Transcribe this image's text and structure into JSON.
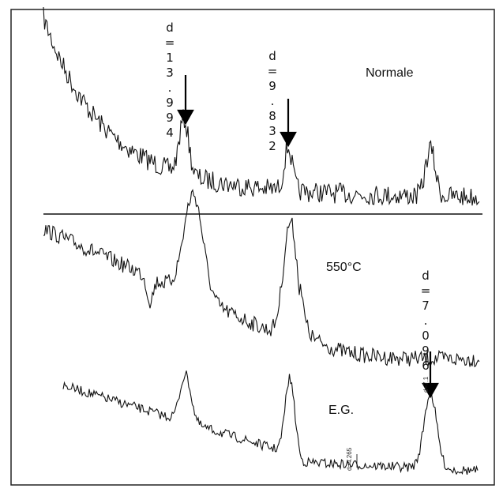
{
  "figure": {
    "normal": {
      "name": "Normale",
      "peak_labels": [
        "d=13.994",
        "d=9.832"
      ]
    },
    "heated": {
      "name": "550°C",
      "peak_labels": [
        "d=7.096"
      ]
    },
    "glycol": {
      "name": "E.G.",
      "small_labels": [
        "d=4.265",
        "d=7.1"
      ]
    }
  }
}
